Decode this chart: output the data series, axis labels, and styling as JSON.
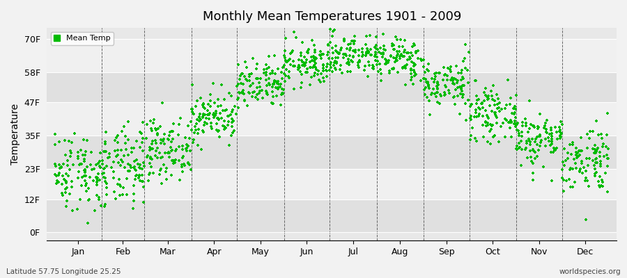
{
  "title": "Monthly Mean Temperatures 1901 - 2009",
  "ylabel": "Temperature",
  "subtitle_left": "Latitude 57.75 Longitude 25.25",
  "subtitle_right": "worldspecies.org",
  "dot_color": "#00bb00",
  "background_color": "#f2f2f2",
  "plot_bg_color": "#e8e8e8",
  "band_color_dark": "#e0e0e0",
  "band_color_light": "#f0f0f0",
  "ytick_labels": [
    "0F",
    "12F",
    "23F",
    "35F",
    "47F",
    "58F",
    "70F"
  ],
  "ytick_values": [
    0,
    12,
    23,
    35,
    47,
    58,
    70
  ],
  "ylim": [
    -3,
    74
  ],
  "months": [
    "Jan",
    "Feb",
    "Mar",
    "Apr",
    "May",
    "Jun",
    "Jul",
    "Aug",
    "Sep",
    "Oct",
    "Nov",
    "Dec"
  ],
  "legend_label": "Mean Temp",
  "marker_size": 6,
  "n_years": 109,
  "seed": 42,
  "monthly_mean_C": [
    -5.5,
    -5.0,
    -1.0,
    5.5,
    11.5,
    16.0,
    18.0,
    17.0,
    12.0,
    6.0,
    1.0,
    -3.0
  ],
  "monthly_std_C": [
    4.0,
    4.0,
    3.0,
    2.5,
    2.5,
    2.2,
    2.2,
    2.2,
    2.5,
    2.5,
    2.8,
    3.5
  ],
  "month_days": [
    31,
    28,
    31,
    30,
    31,
    30,
    31,
    31,
    30,
    31,
    30,
    31
  ],
  "total_days": 365
}
